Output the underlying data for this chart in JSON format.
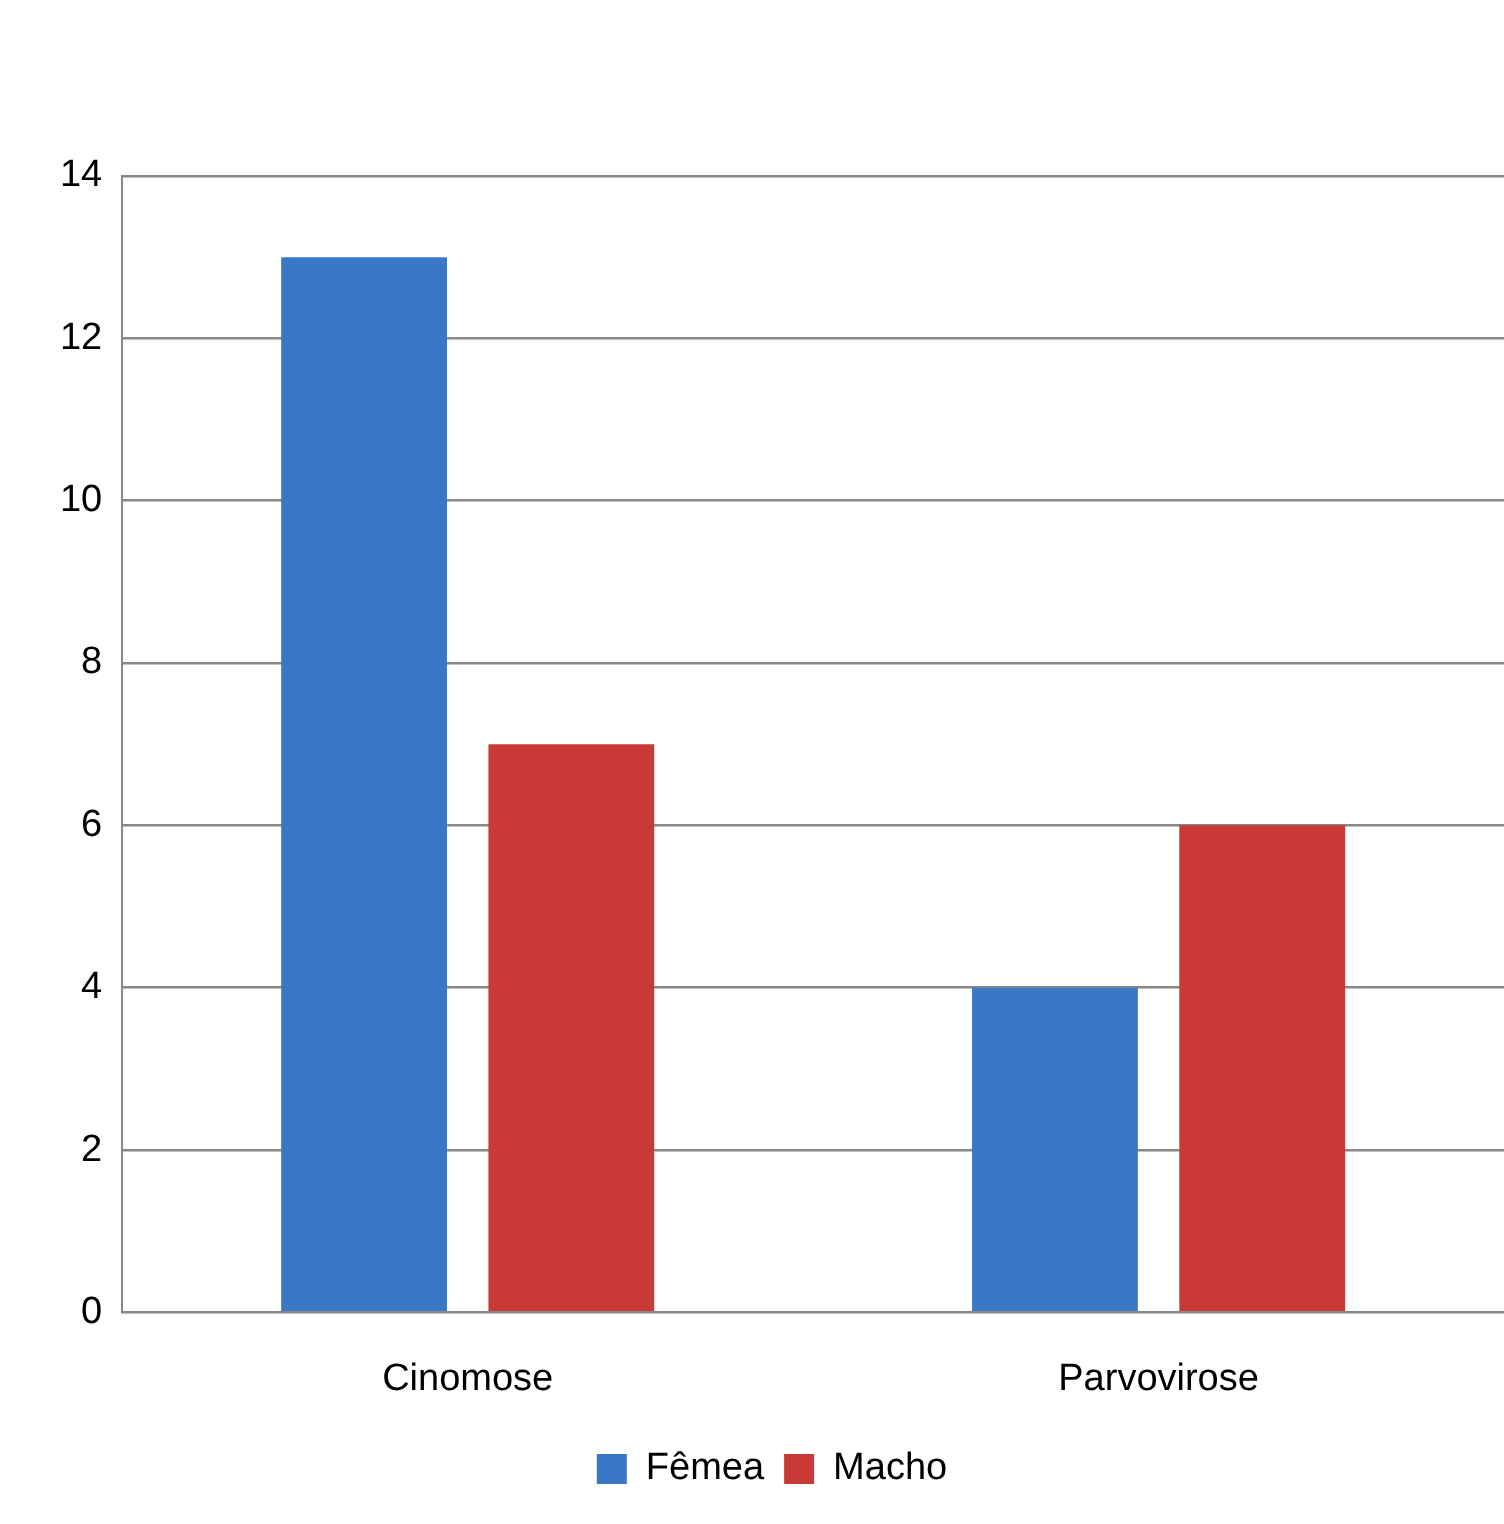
{
  "chart_data": {
    "type": "bar",
    "categories": [
      "Cinomose",
      "Parvovirose"
    ],
    "series": [
      {
        "name": "Fêmea",
        "color": "#3a78c6",
        "values": [
          13,
          4
        ]
      },
      {
        "name": "Macho",
        "color": "#c93a36",
        "values": [
          7,
          6
        ]
      }
    ],
    "ylim": [
      0,
      14
    ],
    "yticks": [
      0,
      2,
      4,
      6,
      8,
      10,
      12,
      14
    ],
    "grid": "y",
    "legend": "bottom"
  }
}
